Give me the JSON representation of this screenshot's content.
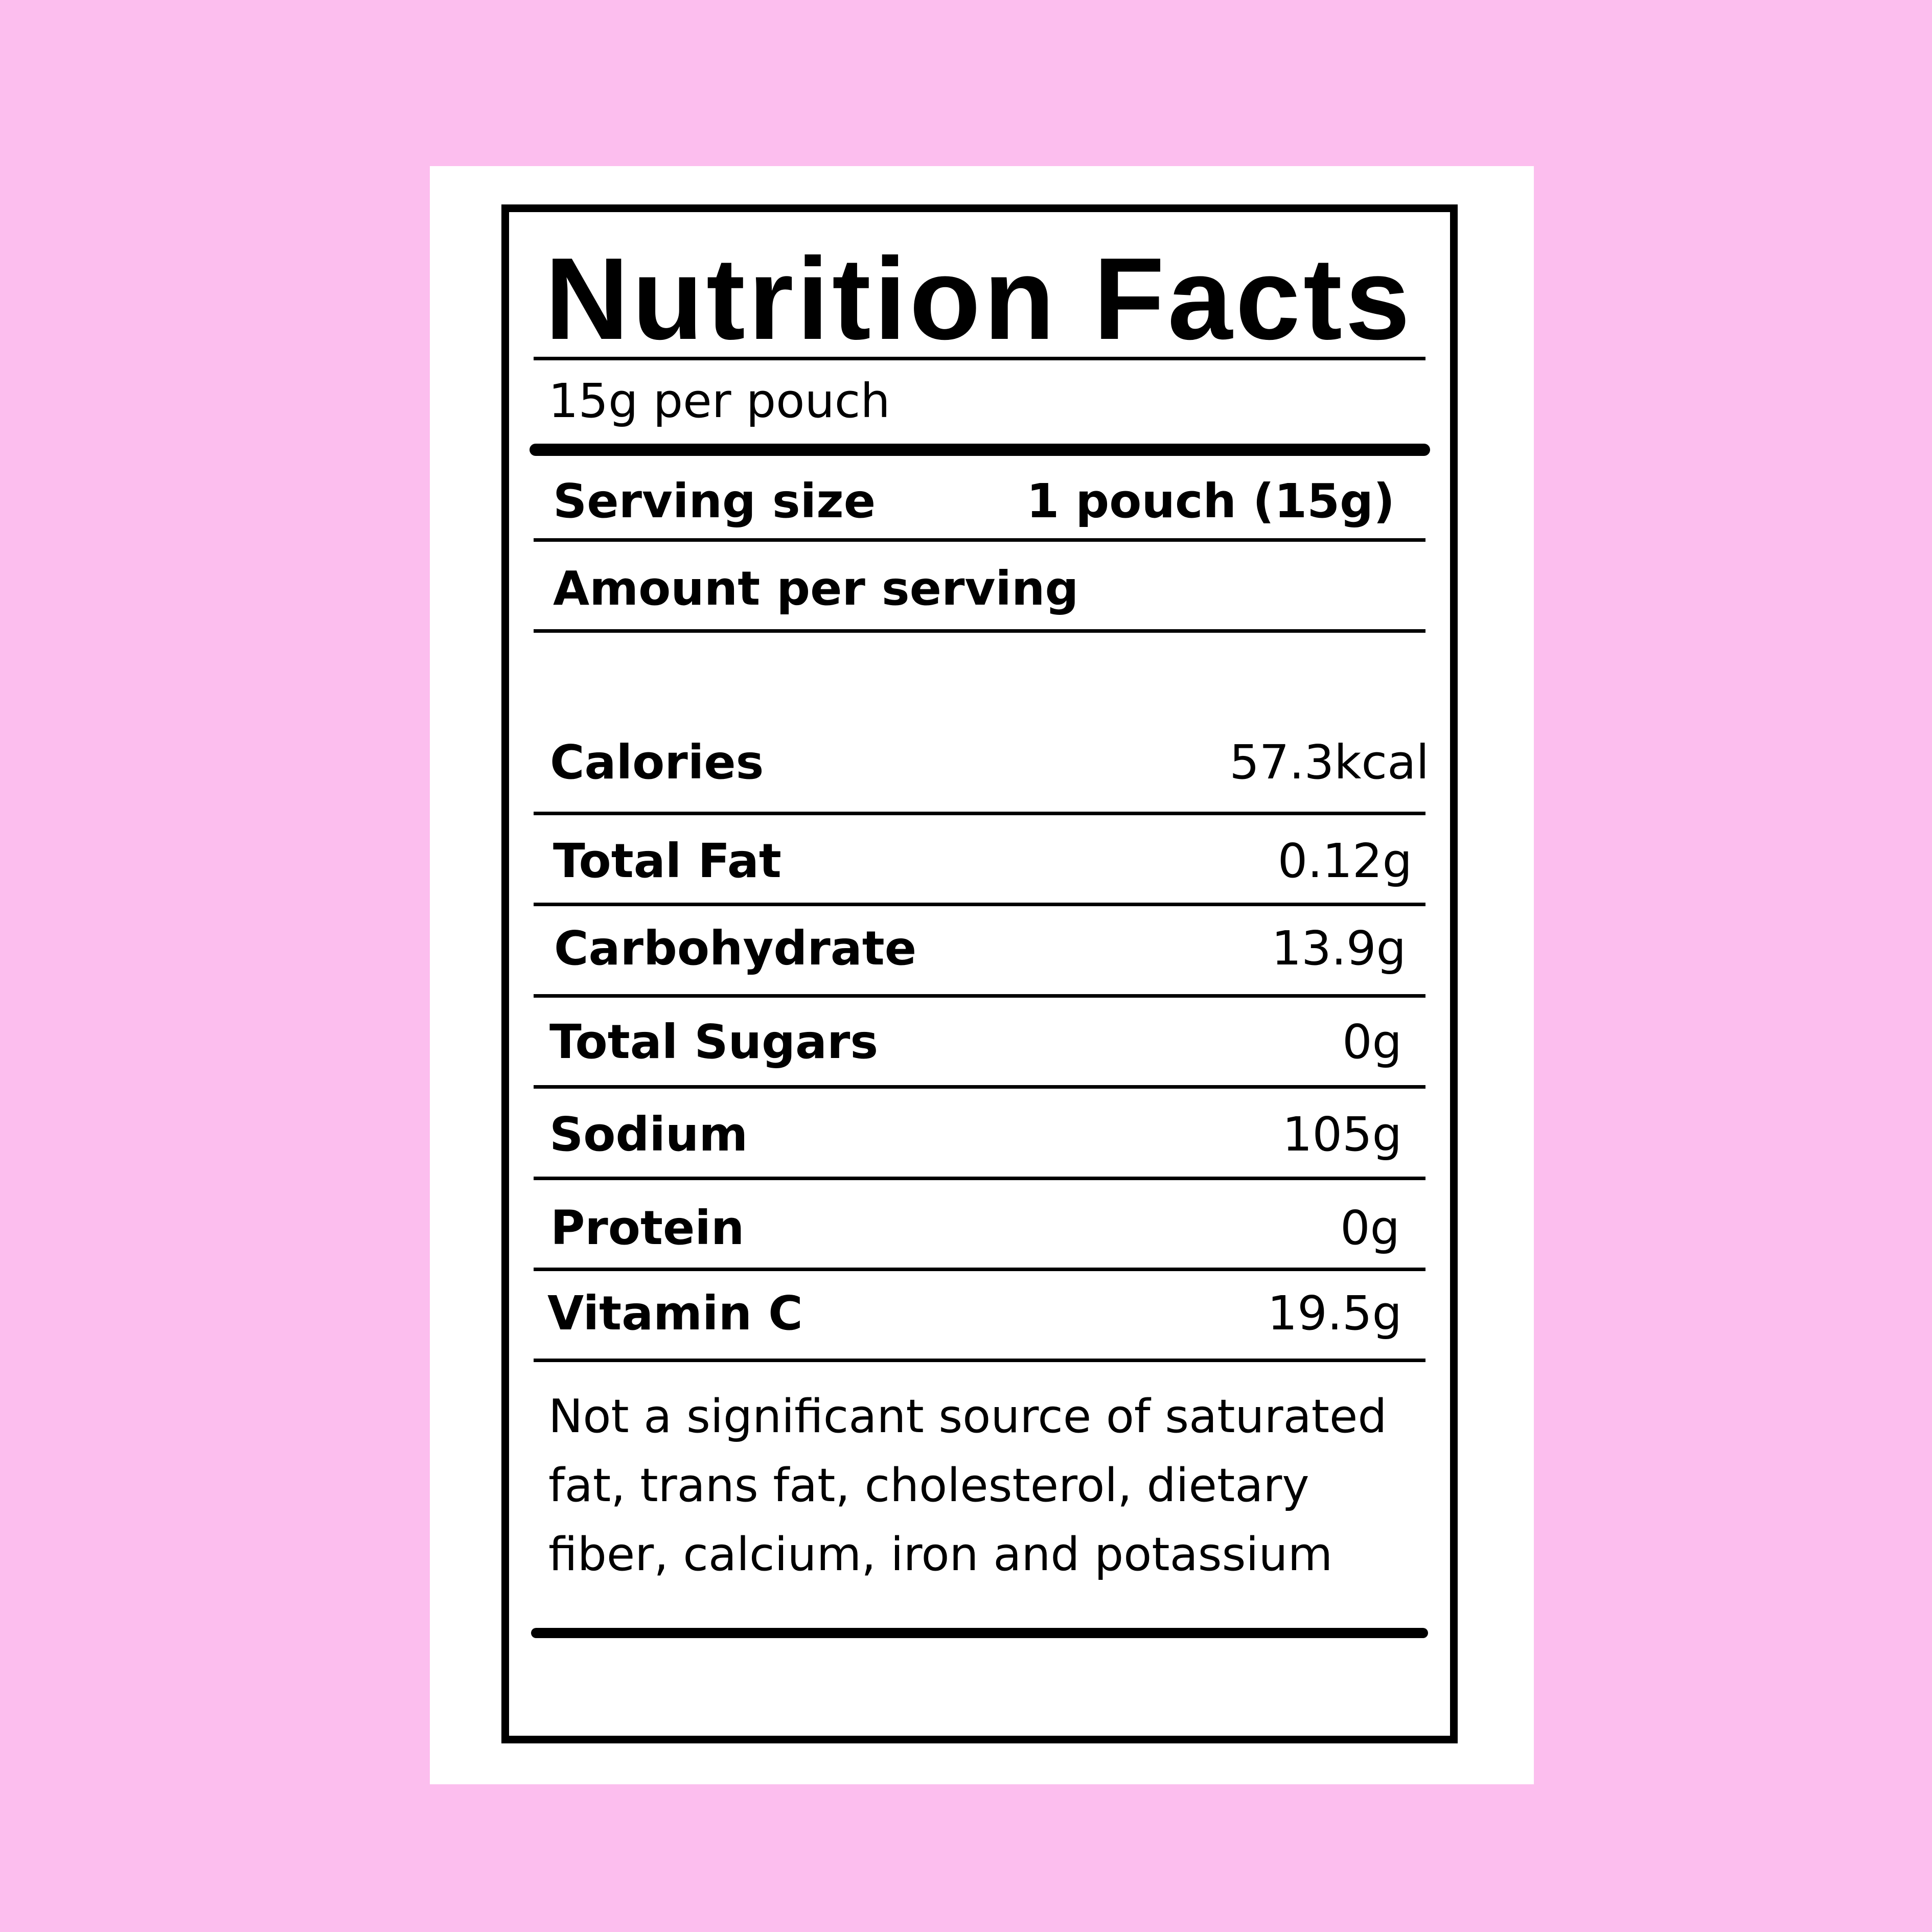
{
  "colors": {
    "background": "#FCBEEE",
    "card": "#FFFFFF",
    "ink": "#000000"
  },
  "label": {
    "title": "Nutrition Facts",
    "subtitle": "15g per pouch",
    "serving_size_label": "Serving size",
    "serving_size_value": "1 pouch (15g)",
    "amount_per_serving": "Amount per serving",
    "nutrients": [
      {
        "name": "Calories",
        "value": "57.3kcal"
      },
      {
        "name": "Total Fat",
        "value": "0.12g"
      },
      {
        "name": "Carbohydrate",
        "value": "13.9g"
      },
      {
        "name": "Total Sugars",
        "value": "0g"
      },
      {
        "name": "Sodium",
        "value": "105g"
      },
      {
        "name": "Protein",
        "value": "0g"
      },
      {
        "name": "Vitamin C",
        "value": "19.5g"
      }
    ],
    "footnote_lines": [
      "Not a significant source of saturated",
      "fat, trans fat, cholesterol, dietary",
      "fiber, calcium, iron and potassium"
    ]
  }
}
